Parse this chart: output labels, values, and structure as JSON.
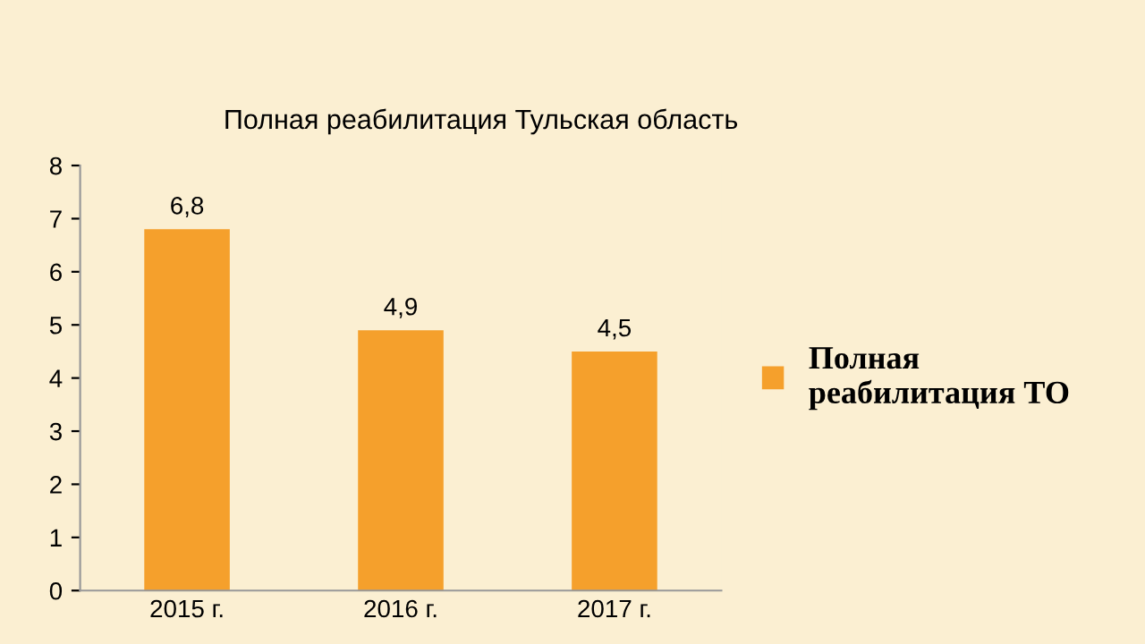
{
  "chart_data": {
    "type": "bar",
    "title": "Полная реабилитация Тульская область",
    "categories": [
      "2015 г.",
      "2016 г.",
      "2017 г."
    ],
    "series": [
      {
        "name": "Полная\nреабилитация ТО",
        "color": "#f5a02c",
        "values": [
          6.8,
          4.9,
          4.5
        ]
      }
    ],
    "value_labels": [
      "6,8",
      "4,9",
      "4,5"
    ],
    "ylim": [
      0,
      8
    ],
    "yticks": [
      0,
      1,
      2,
      3,
      4,
      5,
      6,
      7,
      8
    ],
    "grid": false,
    "legend": "right"
  }
}
